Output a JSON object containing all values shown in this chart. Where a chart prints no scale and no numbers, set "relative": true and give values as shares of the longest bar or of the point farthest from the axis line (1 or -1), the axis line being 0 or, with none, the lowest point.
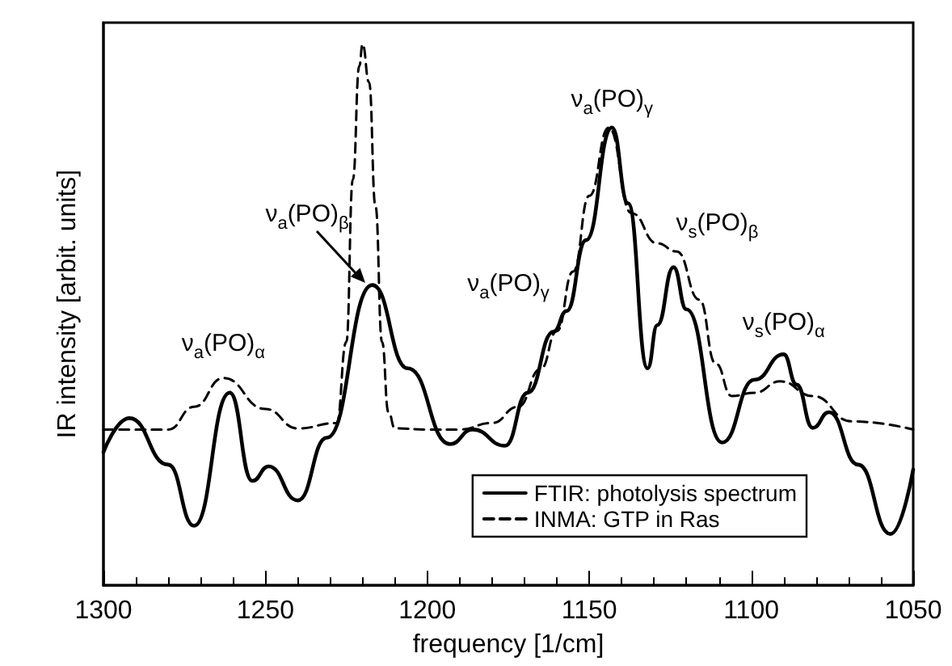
{
  "chart_data": {
    "type": "line",
    "relative": true,
    "xlabel": "frequency [1/cm]",
    "ylabel": "IR intensity [arbit. units]",
    "xlim": [
      1300,
      1050
    ],
    "xticks": [
      1300,
      1250,
      1200,
      1150,
      1100,
      1050
    ],
    "legend": "bottom right",
    "grid": false,
    "marker": "none",
    "series": [
      {
        "name": "FTIR: photolysis spectrum",
        "color": "#000000",
        "line_style": "solid",
        "x": [
          1300,
          1292,
          1280,
          1272,
          1261,
          1254,
          1249,
          1240,
          1231,
          1217,
          1206,
          1193,
          1186,
          1176,
          1169,
          1161,
          1157,
          1151,
          1143,
          1138,
          1132,
          1129,
          1124,
          1120,
          1109,
          1099,
          1090,
          1086,
          1081,
          1076,
          1067,
          1057,
          1050
        ],
        "values": [
          0.246,
          0.309,
          0.223,
          0.11,
          0.356,
          0.193,
          0.22,
          0.157,
          0.273,
          0.555,
          0.401,
          0.261,
          0.288,
          0.258,
          0.356,
          0.469,
          0.507,
          0.638,
          0.846,
          0.706,
          0.401,
          0.481,
          0.588,
          0.51,
          0.264,
          0.38,
          0.427,
          0.371,
          0.291,
          0.32,
          0.223,
          0.095,
          0.214
        ]
      },
      {
        "name": "INMA: GTP in Ras",
        "color": "#000000",
        "line_style": "dashed",
        "x": [
          1300,
          1280,
          1272,
          1263,
          1250,
          1240,
          1228,
          1225,
          1223,
          1221,
          1220,
          1218,
          1216,
          1214,
          1212,
          1210,
          1200,
          1190,
          1180,
          1172,
          1165,
          1160,
          1155,
          1150,
          1144,
          1137,
          1129,
          1123,
          1116,
          1111,
          1106,
          1099,
          1091,
          1081,
          1069,
          1050
        ],
        "values": [
          0.288,
          0.288,
          0.33,
          0.383,
          0.326,
          0.29,
          0.3,
          0.45,
          0.75,
          0.96,
          1,
          0.93,
          0.7,
          0.45,
          0.32,
          0.29,
          0.288,
          0.288,
          0.3,
          0.33,
          0.4,
          0.47,
          0.58,
          0.72,
          0.846,
          0.688,
          0.632,
          0.617,
          0.528,
          0.41,
          0.35,
          0.356,
          0.377,
          0.35,
          0.303,
          0.288
        ]
      }
    ],
    "annotations": [
      {
        "text": "ν$_{a}$(PO)$_{α}$",
        "x": 1263,
        "y": 0.383
      },
      "ν$_{a}$(PO)$_{β}$",
      {
        "text": "ν$_{a}$(PO)$_{γ}$",
        "x": 1160,
        "y": 0.47
      },
      {
        "text": "ν$_{a}$(PO)$_{γ}$",
        "x": 1143,
        "y": 0.846
      },
      {
        "text": "ν$_{s}$(PO)$_{β}$",
        "x": 1123,
        "y": 0.617
      },
      {
        "text": "ν$_{s}$(PO)$_{α}$",
        "x": 1090,
        "y": 0.427
      }
    ]
  }
}
